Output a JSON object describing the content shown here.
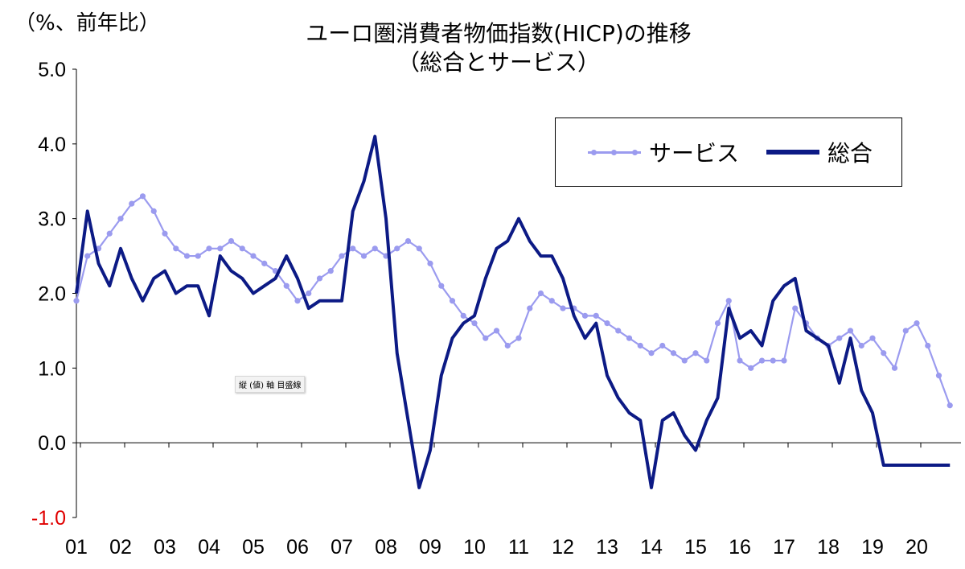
{
  "unit_label": "（%、前年比）",
  "title_line1": "ユーロ圏消費者物価指数(HICP)の推移",
  "title_line2": "（総合とサービス）",
  "tooltip_label": "縦 (値) 軸 目盛線",
  "colors": {
    "services": "#9b9bef",
    "overall": "#0c1a85",
    "negative_tick": "#e00000"
  },
  "chart_data": {
    "type": "line",
    "title": "ユーロ圏消費者物価指数(HICP)の推移（総合とサービス）",
    "ylabel": "（%、前年比）",
    "ylim": [
      -1.0,
      5.0
    ],
    "yticks": [
      "5.0",
      "4.0",
      "3.0",
      "2.0",
      "1.0",
      "0.0",
      "-1.0"
    ],
    "xticks": [
      "01",
      "02",
      "03",
      "04",
      "05",
      "06",
      "07",
      "08",
      "09",
      "10",
      "11",
      "12",
      "13",
      "14",
      "15",
      "16",
      "17",
      "18",
      "19",
      "20"
    ],
    "x": [
      2001.0,
      2001.25,
      2001.5,
      2001.75,
      2002.0,
      2002.25,
      2002.5,
      2002.75,
      2003.0,
      2003.25,
      2003.5,
      2003.75,
      2004.0,
      2004.25,
      2004.5,
      2004.75,
      2005.0,
      2005.25,
      2005.5,
      2005.75,
      2006.0,
      2006.25,
      2006.5,
      2006.75,
      2007.0,
      2007.25,
      2007.5,
      2007.75,
      2008.0,
      2008.25,
      2008.5,
      2008.75,
      2009.0,
      2009.25,
      2009.5,
      2009.75,
      2010.0,
      2010.25,
      2010.5,
      2010.75,
      2011.0,
      2011.25,
      2011.5,
      2011.75,
      2012.0,
      2012.25,
      2012.5,
      2012.75,
      2013.0,
      2013.25,
      2013.5,
      2013.75,
      2014.0,
      2014.25,
      2014.5,
      2014.75,
      2015.0,
      2015.25,
      2015.5,
      2015.75,
      2016.0,
      2016.25,
      2016.5,
      2016.75,
      2017.0,
      2017.25,
      2017.5,
      2017.75,
      2018.0,
      2018.25,
      2018.5,
      2018.75,
      2019.0,
      2019.25,
      2019.5,
      2019.75,
      2020.0,
      2020.25,
      2020.5,
      2020.75
    ],
    "legend": {
      "position": "top-right"
    },
    "grid": false,
    "series": [
      {
        "name": "サービス",
        "values": [
          1.9,
          2.5,
          2.6,
          2.8,
          3.0,
          3.2,
          3.3,
          3.1,
          2.8,
          2.6,
          2.5,
          2.5,
          2.6,
          2.6,
          2.7,
          2.6,
          2.5,
          2.4,
          2.3,
          2.1,
          1.9,
          2.0,
          2.2,
          2.3,
          2.5,
          2.6,
          2.5,
          2.6,
          2.5,
          2.6,
          2.7,
          2.6,
          2.4,
          2.1,
          1.9,
          1.7,
          1.6,
          1.4,
          1.5,
          1.3,
          1.4,
          1.8,
          2.0,
          1.9,
          1.8,
          1.8,
          1.7,
          1.7,
          1.6,
          1.5,
          1.4,
          1.3,
          1.2,
          1.3,
          1.2,
          1.1,
          1.2,
          1.1,
          1.6,
          1.9,
          1.1,
          1.0,
          1.1,
          1.1,
          1.1,
          1.8,
          1.6,
          1.4,
          1.3,
          1.4,
          1.5,
          1.3,
          1.4,
          1.2,
          1.0,
          1.5,
          1.6,
          1.3,
          0.9,
          0.5
        ]
      },
      {
        "name": "総合",
        "values": [
          2.0,
          3.1,
          2.4,
          2.1,
          2.6,
          2.2,
          1.9,
          2.2,
          2.3,
          2.0,
          2.1,
          2.1,
          1.7,
          2.5,
          2.3,
          2.2,
          2.0,
          2.1,
          2.2,
          2.5,
          2.2,
          1.8,
          1.9,
          1.9,
          1.9,
          3.1,
          3.5,
          4.1,
          3.0,
          1.2,
          0.3,
          -0.6,
          -0.1,
          0.9,
          1.4,
          1.6,
          1.7,
          2.2,
          2.6,
          2.7,
          3.0,
          2.7,
          2.5,
          2.5,
          2.2,
          1.7,
          1.4,
          1.6,
          0.9,
          0.6,
          0.4,
          0.3,
          -0.6,
          0.3,
          0.4,
          0.1,
          -0.1,
          0.3,
          0.6,
          1.8,
          1.4,
          1.5,
          1.3,
          1.9,
          2.1,
          2.2,
          1.5,
          1.4,
          1.3,
          0.8,
          1.4,
          0.7,
          0.4,
          -0.3,
          -0.3,
          -0.3,
          -0.3,
          -0.3,
          -0.3,
          -0.3
        ]
      }
    ]
  }
}
